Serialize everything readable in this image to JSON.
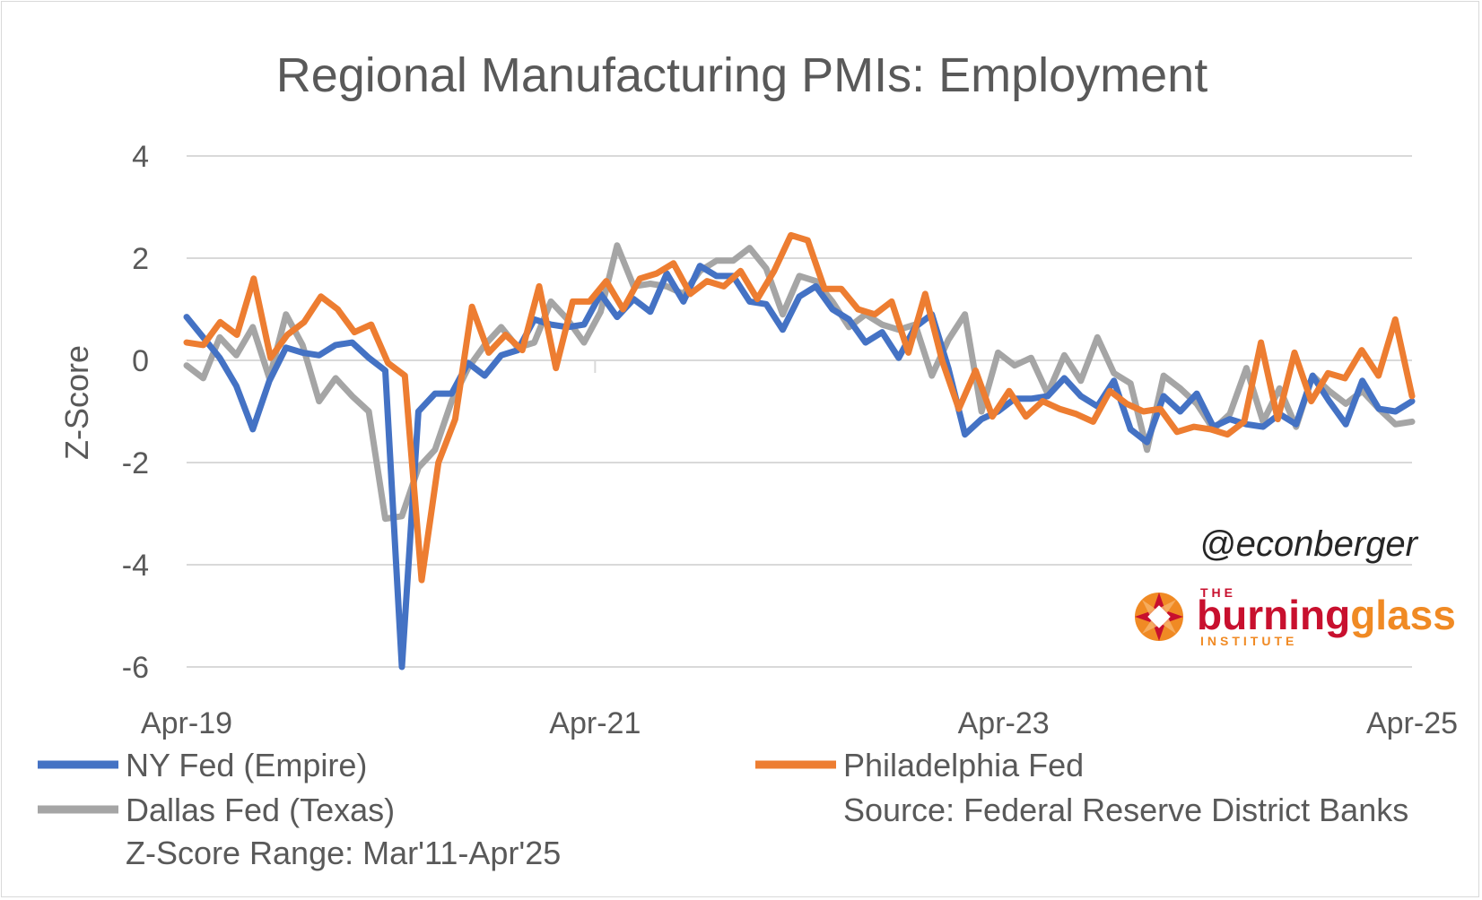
{
  "chart_data": {
    "type": "line",
    "title": "Regional Manufacturing PMIs: Employment",
    "ylabel": "Z-Score",
    "xlabel": "",
    "ylim": [
      -6,
      4
    ],
    "yticks": [
      4,
      2,
      0,
      -2,
      -4,
      -6
    ],
    "ytick_labels": [
      "4",
      "2",
      "0",
      "-2",
      "-4",
      "-6"
    ],
    "xlim": [
      "2019-04",
      "2025-04"
    ],
    "xticks": [
      "2019-04",
      "2021-04",
      "2023-04",
      "2025-04"
    ],
    "xtick_labels": [
      "Apr-19",
      "Apr-21",
      "Apr-23",
      "Apr-25"
    ],
    "grid": "horizontal",
    "legend_position": "bottom",
    "colors": {
      "ny": "#4472c4",
      "philly": "#ed7d31",
      "dallas": "#a5a5a5",
      "grid": "#d9d9d9",
      "text": "#595959"
    },
    "series": [
      {
        "name": "NY Fed (Empire)",
        "color": "#4472c4",
        "values": [
          0.85,
          0.45,
          0.05,
          -0.5,
          -1.35,
          -0.4,
          0.25,
          0.15,
          0.1,
          0.3,
          0.35,
          0.05,
          -0.2,
          -6.2,
          -1.0,
          -0.65,
          -0.65,
          -0.05,
          -0.3,
          0.1,
          0.2,
          0.8,
          0.7,
          0.65,
          0.7,
          1.3,
          0.85,
          1.2,
          0.95,
          1.7,
          1.15,
          1.85,
          1.65,
          1.65,
          1.15,
          1.1,
          0.6,
          1.25,
          1.45,
          1.0,
          0.8,
          0.35,
          0.55,
          0.05,
          0.65,
          0.9,
          -0.15,
          -1.45,
          -1.15,
          -1.0,
          -0.75,
          -0.75,
          -0.7,
          -0.35,
          -0.7,
          -0.9,
          -0.4,
          -1.35,
          -1.6,
          -0.7,
          -1.0,
          -0.65,
          -1.3,
          -1.15,
          -1.25,
          -1.3,
          -1.05,
          -1.25,
          -0.3,
          -0.8,
          -1.25,
          -0.4,
          -0.95,
          -1.0,
          -0.8
        ]
      },
      {
        "name": "Philadelphia Fed",
        "color": "#ed7d31",
        "values": [
          0.35,
          0.3,
          0.75,
          0.5,
          1.6,
          0.05,
          0.5,
          0.75,
          1.25,
          1.0,
          0.55,
          0.7,
          -0.05,
          -0.3,
          -4.3,
          -2.0,
          -1.15,
          1.05,
          0.15,
          0.5,
          0.2,
          1.45,
          -0.15,
          1.15,
          1.15,
          1.55,
          1.0,
          1.6,
          1.7,
          1.9,
          1.3,
          1.55,
          1.45,
          1.75,
          1.2,
          1.75,
          2.45,
          2.35,
          1.4,
          1.4,
          1.0,
          0.9,
          1.15,
          0.15,
          1.3,
          0.0,
          -0.95,
          -0.2,
          -1.1,
          -0.6,
          -1.1,
          -0.8,
          -0.95,
          -1.05,
          -1.2,
          -0.6,
          -0.85,
          -1.0,
          -0.95,
          -1.4,
          -1.3,
          -1.35,
          -1.45,
          -1.2,
          0.35,
          -1.15,
          0.15,
          -0.8,
          -0.25,
          -0.35,
          0.2,
          -0.3,
          0.8,
          -0.7
        ]
      },
      {
        "name": "Dallas Fed (Texas)",
        "color": "#a5a5a5",
        "values": [
          -0.1,
          -0.35,
          0.45,
          0.1,
          0.65,
          -0.35,
          0.9,
          0.3,
          -0.8,
          -0.35,
          -0.7,
          -1.0,
          -3.1,
          -3.05,
          -2.1,
          -1.75,
          -0.8,
          -0.15,
          0.3,
          0.65,
          0.25,
          0.35,
          1.15,
          0.8,
          0.35,
          0.95,
          2.25,
          1.45,
          1.5,
          1.45,
          1.3,
          1.75,
          1.95,
          1.95,
          2.2,
          1.8,
          0.9,
          1.65,
          1.55,
          1.15,
          0.65,
          0.9,
          0.7,
          0.6,
          0.7,
          -0.3,
          0.4,
          0.9,
          -1.0,
          0.15,
          -0.1,
          0.05,
          -0.65,
          0.1,
          -0.4,
          0.45,
          -0.25,
          -0.45,
          -1.75,
          -0.3,
          -0.55,
          -0.85,
          -1.35,
          -1.05,
          -0.15,
          -1.2,
          -0.55,
          -1.3,
          -0.3,
          -0.6,
          -0.85,
          -0.6,
          -0.95,
          -1.25,
          -1.2
        ]
      }
    ]
  },
  "legend": {
    "ny": "NY Fed (Empire)",
    "philly": "Philadelphia Fed",
    "dallas": "Dallas Fed (Texas)"
  },
  "notes": {
    "source": "Source: Federal Reserve District Banks",
    "range": "Z-Score Range: Mar'11-Apr'25"
  },
  "branding": {
    "handle": "@econberger",
    "logo_the": "THE",
    "logo_burning": "burning",
    "logo_glass": "glass",
    "logo_institute": "INSTITUTE",
    "logo_colors": {
      "red": "#c8102e",
      "orange": "#f08a24"
    }
  }
}
